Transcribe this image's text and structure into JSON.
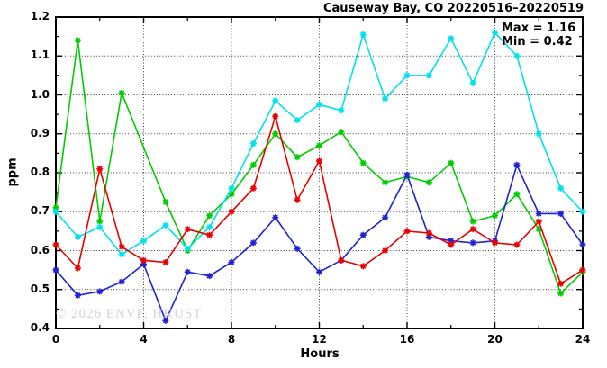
{
  "header": {
    "title": "Causeway Bay, CO 20220516–20220519"
  },
  "annotation": {
    "max_label": "Max = 1.16",
    "min_label": "Min = 0.42"
  },
  "watermark": {
    "text": "© 2026 ENVF, HKUST"
  },
  "chart_data": {
    "type": "line",
    "title": "Causeway Bay, CO 20220516–20220519",
    "xlabel": "Hours",
    "ylabel": "ppm",
    "xlim": [
      0,
      24
    ],
    "ylim": [
      0.4,
      1.2
    ],
    "x_ticks": [
      0,
      4,
      8,
      12,
      16,
      20,
      24
    ],
    "x_tick_labels": [
      "0",
      "4",
      "8",
      "12",
      "16",
      "20",
      "24"
    ],
    "x_minor_ticks": [
      2,
      6,
      10,
      14,
      18,
      22
    ],
    "y_ticks": [
      0.4,
      0.5,
      0.6,
      0.7,
      0.8,
      0.9,
      1.0,
      1.1,
      1.2
    ],
    "y_tick_labels": [
      "0.4",
      "0.5",
      "0.6",
      "0.7",
      "0.8",
      "0.9",
      "1.0",
      "1.1",
      "1.2"
    ],
    "y_minor_ticks": [
      0.45,
      0.55,
      0.65,
      0.75,
      0.85,
      0.95,
      1.05,
      1.15
    ],
    "grid": true,
    "legend": "none",
    "marker": "asterisk",
    "max": 1.16,
    "min": 0.42,
    "x": [
      0,
      1,
      2,
      3,
      4,
      5,
      6,
      7,
      8,
      9,
      10,
      11,
      12,
      13,
      14,
      15,
      16,
      17,
      18,
      19,
      20,
      21,
      22,
      23,
      24
    ],
    "series": [
      {
        "name": "series-green",
        "color": "#00cc00",
        "values": [
          0.71,
          1.14,
          0.675,
          1.005,
          null,
          0.725,
          0.6,
          0.69,
          0.745,
          0.82,
          0.9,
          0.84,
          0.87,
          0.905,
          0.825,
          0.775,
          0.79,
          0.775,
          0.825,
          0.675,
          0.69,
          0.745,
          0.655,
          0.49,
          0.545
        ]
      },
      {
        "name": "series-cyan",
        "color": "#00e2ea",
        "values": [
          0.7,
          0.635,
          0.66,
          0.59,
          0.625,
          0.665,
          0.605,
          0.66,
          0.76,
          0.875,
          0.985,
          0.935,
          0.975,
          0.96,
          1.155,
          0.99,
          1.05,
          1.05,
          1.145,
          1.03,
          1.16,
          1.1,
          0.9,
          0.76,
          0.7
        ]
      },
      {
        "name": "series-blue",
        "color": "#2121d4",
        "values": [
          0.55,
          0.485,
          0.495,
          0.52,
          0.565,
          0.42,
          0.545,
          0.535,
          0.57,
          0.62,
          0.685,
          0.605,
          0.545,
          0.575,
          0.64,
          0.685,
          0.795,
          0.635,
          0.625,
          0.62,
          0.625,
          0.82,
          0.695,
          0.695,
          0.615
        ]
      },
      {
        "name": "series-red",
        "color": "#e80000",
        "values": [
          0.615,
          0.555,
          0.81,
          0.61,
          0.575,
          0.57,
          0.655,
          0.64,
          0.7,
          0.76,
          0.945,
          0.73,
          0.83,
          0.575,
          0.56,
          0.6,
          0.65,
          0.645,
          0.615,
          0.655,
          0.62,
          0.615,
          0.675,
          0.515,
          0.55
        ]
      }
    ]
  }
}
